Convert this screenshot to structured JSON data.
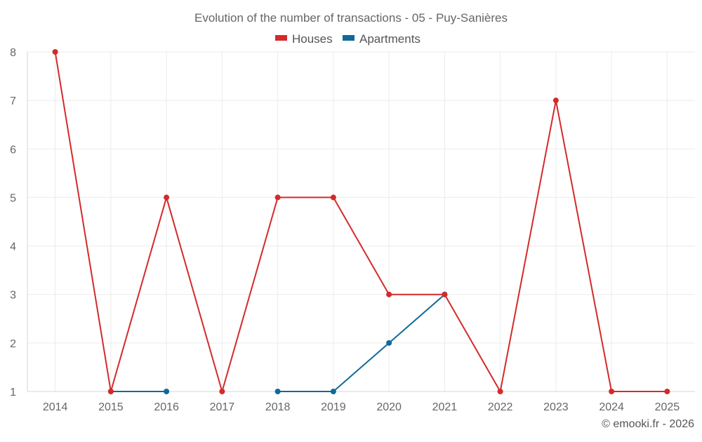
{
  "chart_data": {
    "type": "line",
    "title": "Evolution of the number of transactions - 05 - Puy-Sanières",
    "categories": [
      "2014",
      "2015",
      "2016",
      "2017",
      "2018",
      "2019",
      "2020",
      "2021",
      "2022",
      "2023",
      "2024",
      "2025"
    ],
    "series": [
      {
        "name": "Houses",
        "color": "#d42a2a",
        "values": [
          8,
          1,
          5,
          1,
          5,
          5,
          3,
          3,
          1,
          7,
          1,
          1
        ]
      },
      {
        "name": "Apartments",
        "color": "#0f6a99",
        "values": [
          null,
          1,
          1,
          null,
          1,
          1,
          2,
          3,
          null,
          null,
          null,
          null
        ]
      }
    ],
    "ylim": [
      1,
      8
    ],
    "yticks": [
      1,
      2,
      3,
      4,
      5,
      6,
      7,
      8
    ],
    "xlabel": "",
    "ylabel": "",
    "grid": true,
    "legend_position": "top-center"
  },
  "footer": {
    "credit": "© emooki.fr - 2026"
  }
}
